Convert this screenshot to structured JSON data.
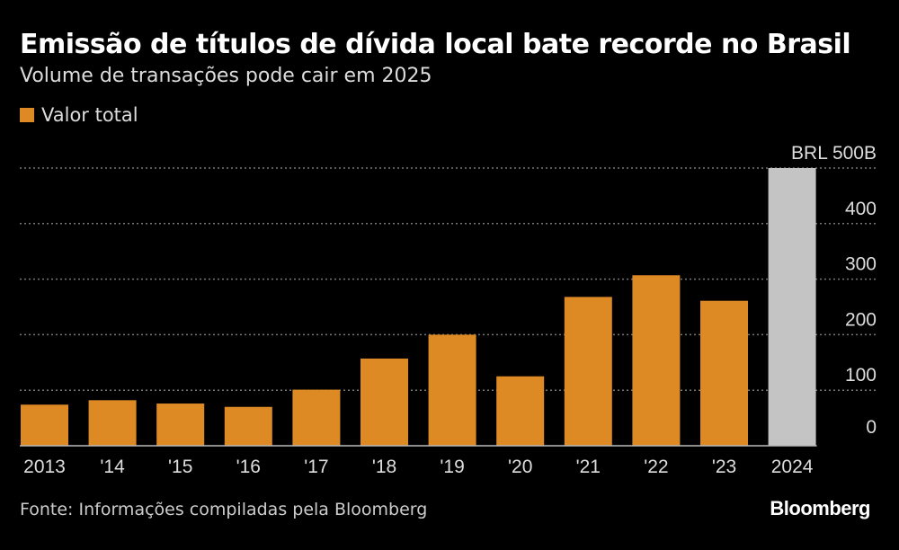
{
  "chart_data": {
    "type": "bar",
    "title": "Emissão de títulos de dívida local bate recorde no Brasil",
    "subtitle": "Volume de transações pode cair em 2025",
    "legend": [
      {
        "name": "Valor total",
        "color": "#dd8a25"
      }
    ],
    "legend_position": "top-left",
    "categories": [
      "2013",
      "'14",
      "'15",
      "'16",
      "'17",
      "'18",
      "'19",
      "'20",
      "'21",
      "'22",
      "'23",
      "2024"
    ],
    "values": [
      74,
      82,
      76,
      70,
      101,
      157,
      200,
      125,
      268,
      307,
      261,
      500
    ],
    "bar_colors": [
      "#dd8a25",
      "#dd8a25",
      "#dd8a25",
      "#dd8a25",
      "#dd8a25",
      "#dd8a25",
      "#dd8a25",
      "#dd8a25",
      "#dd8a25",
      "#dd8a25",
      "#dd8a25",
      "#c4c4c4"
    ],
    "ylim": [
      0,
      500
    ],
    "yticks": [
      0,
      100,
      200,
      300,
      400,
      500
    ],
    "ytick_labels": [
      "0",
      "100",
      "200",
      "300",
      "400",
      "BRL  500B"
    ],
    "yaxis_position": "right",
    "grid": true,
    "xlabel": "",
    "ylabel": ""
  },
  "source": "Fonte: Informações compiladas pela Bloomberg",
  "brand": "Bloomberg"
}
